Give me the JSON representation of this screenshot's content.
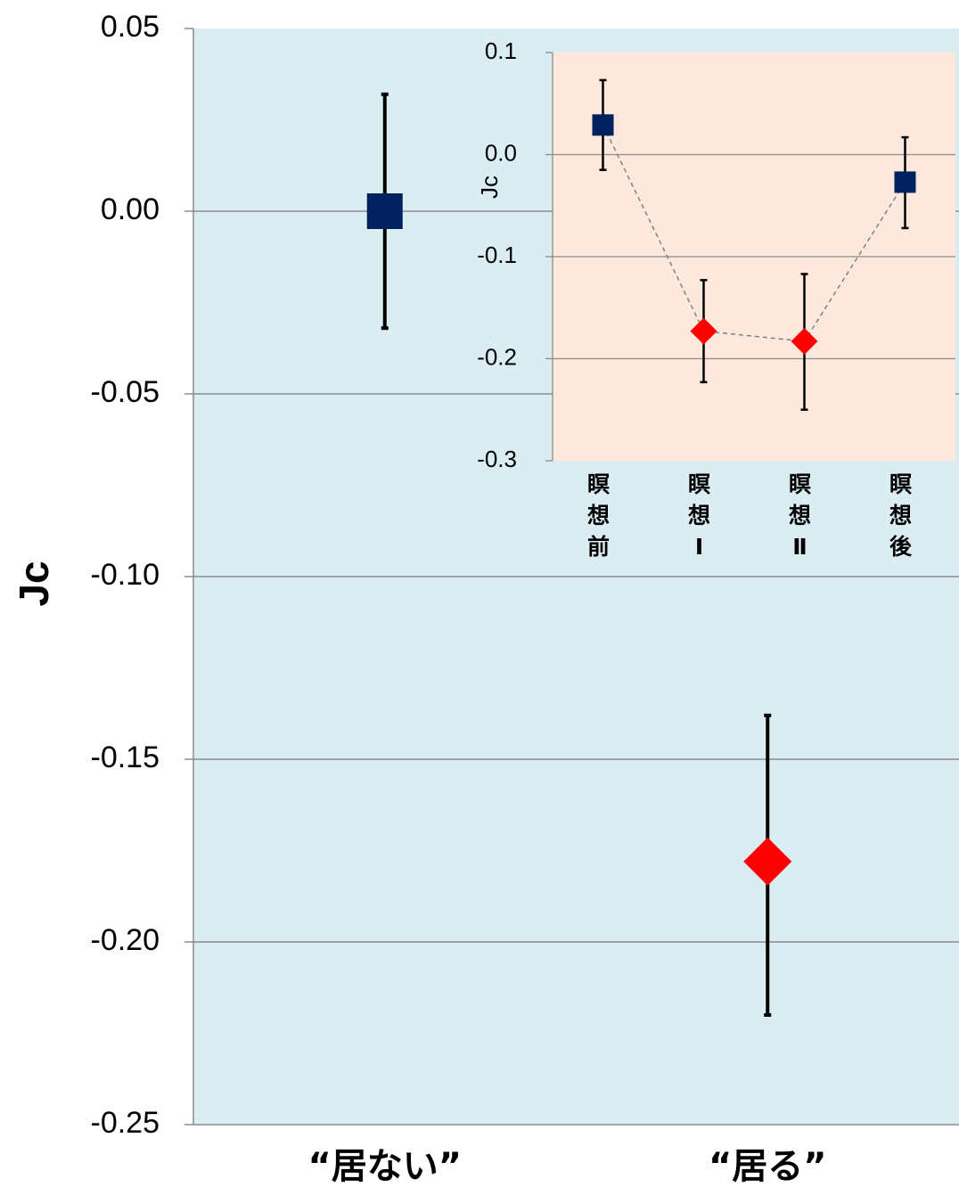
{
  "colors": {
    "main_plot_bg": "#daedf3",
    "inset_plot_bg": "#fce8dc",
    "grid": "#8c8c8c",
    "square_marker": "#002060",
    "diamond_marker": "#ff0000",
    "error_bar": "#000000",
    "connector": "#808080"
  },
  "chart_data": [
    {
      "type": "scatter",
      "title": "",
      "xlabel": "",
      "ylabel": "Jc",
      "ylim": [
        -0.25,
        0.05
      ],
      "yticks": [
        0.05,
        0.0,
        -0.05,
        -0.1,
        -0.15,
        -0.2,
        -0.25
      ],
      "ytick_labels": [
        "0.05",
        "0.00",
        "-0.05",
        "-0.10",
        "-0.15",
        "-0.20",
        "-0.25"
      ],
      "categories": [
        "“居ない”",
        "“居る”"
      ],
      "grid": true,
      "points": [
        {
          "category": "“居ない”",
          "y": 0.0,
          "err_low": -0.032,
          "err_high": 0.032,
          "marker": "square",
          "color": "#002060"
        },
        {
          "category": "“居る”",
          "y": -0.178,
          "err_low": -0.22,
          "err_high": -0.138,
          "marker": "diamond",
          "color": "#ff0000"
        }
      ]
    },
    {
      "type": "line",
      "title": "",
      "xlabel": "",
      "ylabel": "Jc",
      "ylim": [
        -0.3,
        0.1
      ],
      "yticks": [
        0.1,
        0.0,
        -0.1,
        -0.2,
        -0.3
      ],
      "ytick_labels": [
        "0.1",
        "0.0",
        "-0.1",
        "-0.2",
        "-0.3"
      ],
      "categories": [
        "瞑想前",
        "瞑想Ⅰ",
        "瞑想Ⅱ",
        "瞑想後"
      ],
      "category_labels_vertical": [
        [
          "瞑",
          "想",
          "前"
        ],
        [
          "瞑",
          "想",
          "Ⅰ"
        ],
        [
          "瞑",
          "想",
          "Ⅱ"
        ],
        [
          "瞑",
          "想",
          "後"
        ]
      ],
      "grid": true,
      "line_style": "dashed",
      "points": [
        {
          "category": "瞑想前",
          "y": 0.029,
          "err_low": -0.015,
          "err_high": 0.073,
          "marker": "square",
          "color": "#002060"
        },
        {
          "category": "瞑想Ⅰ",
          "y": -0.173,
          "err_low": -0.223,
          "err_high": -0.123,
          "marker": "diamond",
          "color": "#ff0000"
        },
        {
          "category": "瞑想Ⅱ",
          "y": -0.183,
          "err_low": -0.25,
          "err_high": -0.117,
          "marker": "diamond",
          "color": "#ff0000"
        },
        {
          "category": "瞑想後",
          "y": -0.027,
          "err_low": -0.072,
          "err_high": 0.017,
          "marker": "square",
          "color": "#002060"
        }
      ]
    }
  ]
}
